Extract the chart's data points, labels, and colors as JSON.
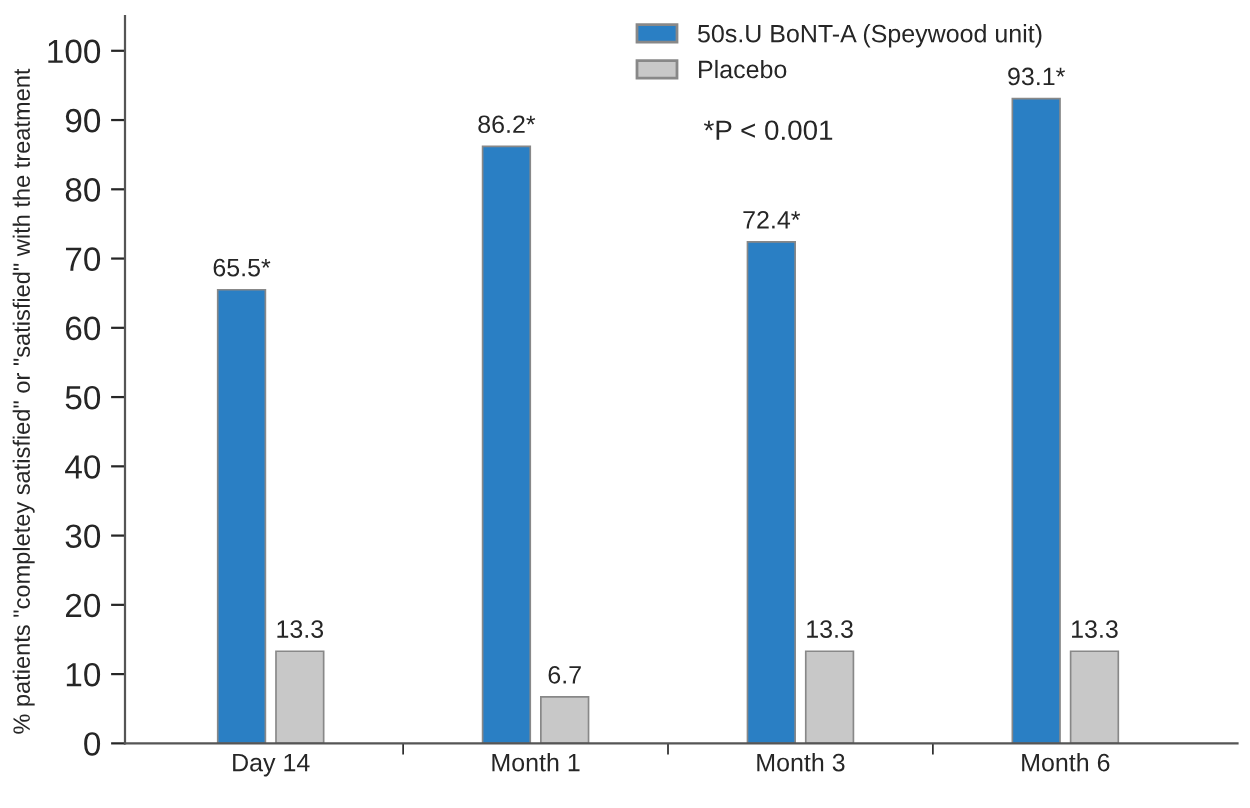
{
  "chart_data": {
    "type": "bar",
    "ylabel": "% patients \"completey satisfied\" or \"satisfied\" with the treatment",
    "categories": [
      "Day 14",
      "Month 1",
      "Month 3",
      "Month 6"
    ],
    "series": [
      {
        "name": "50s.U BoNT-A (Speywood unit)",
        "color": "#2a7fc4",
        "values": [
          65.5,
          86.2,
          72.4,
          93.1
        ],
        "value_labels": [
          "65.5*",
          "86.2*",
          "72.4*",
          "93.1*"
        ]
      },
      {
        "name": "Placebo",
        "color": "#c8c8c8",
        "values": [
          13.3,
          6.7,
          13.3,
          13.3
        ],
        "value_labels": [
          "13.3",
          "6.7",
          "13.3",
          "13.3"
        ]
      }
    ],
    "annotations": [
      "*P < 0.001"
    ],
    "ylim": [
      0,
      105
    ],
    "yticks": [
      0,
      10,
      20,
      30,
      40,
      50,
      60,
      70,
      80,
      90,
      100
    ],
    "grid": false,
    "legend": "top"
  }
}
